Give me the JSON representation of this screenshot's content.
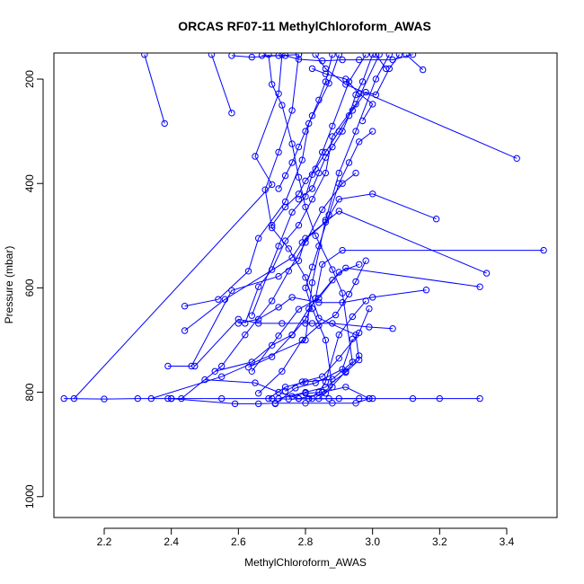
{
  "chart_data": {
    "type": "line",
    "title": "ORCAS RF07-11 MethylChloroform_AWAS",
    "xlabel": "MethylChloroform_AWAS",
    "ylabel": "Pressure (mbar)",
    "xlim": [
      2.05,
      3.55
    ],
    "ylim": [
      1040,
      150
    ],
    "y_reversed": true,
    "xticks": [
      2.2,
      2.4,
      2.6,
      2.8,
      3.0,
      3.2,
      3.4
    ],
    "xtick_labels": [
      "2.2",
      "2.4",
      "2.6",
      "2.8",
      "3.0",
      "3.2",
      "3.4"
    ],
    "yticks": [
      200,
      400,
      600,
      800,
      1000
    ],
    "ytick_labels": [
      "200",
      "400",
      "600",
      "800",
      "1000"
    ],
    "grid": false,
    "line_color": "#0000ff",
    "marker": "open-circle",
    "series": [
      {
        "points": [
          [
            2.08,
            812
          ],
          [
            2.2,
            813
          ],
          [
            2.3,
            812
          ],
          [
            2.4,
            812
          ],
          [
            2.55,
            812
          ],
          [
            2.7,
            812
          ],
          [
            2.75,
            813
          ],
          [
            2.9,
            812
          ],
          [
            3.0,
            812
          ],
          [
            3.12,
            812
          ],
          [
            3.2,
            812
          ],
          [
            3.32,
            812
          ]
        ]
      },
      {
        "points": [
          [
            2.11,
            812
          ],
          [
            2.7,
            402
          ],
          [
            2.65,
            348
          ],
          [
            2.72,
            228
          ],
          [
            2.73,
            153
          ]
        ]
      },
      {
        "points": [
          [
            2.34,
            812
          ],
          [
            2.55,
            770
          ],
          [
            2.8,
            700
          ],
          [
            2.82,
            590
          ],
          [
            2.86,
            470
          ],
          [
            2.9,
            380
          ],
          [
            2.95,
            300
          ],
          [
            3.01,
            200
          ],
          [
            3.05,
            153
          ]
        ]
      },
      {
        "points": [
          [
            2.39,
            812
          ],
          [
            2.43,
            812
          ],
          [
            2.55,
            750
          ],
          [
            2.62,
            690
          ],
          [
            2.7,
            625
          ],
          [
            2.75,
            568
          ],
          [
            2.8,
            513
          ],
          [
            2.85,
            450
          ],
          [
            2.91,
            400
          ],
          [
            2.95,
            380
          ]
        ]
      },
      {
        "points": [
          [
            2.39,
            750
          ],
          [
            2.46,
            750
          ],
          [
            2.58,
            605
          ],
          [
            2.72,
            578
          ],
          [
            2.78,
            548
          ],
          [
            2.8,
            505
          ],
          [
            2.9,
            453
          ],
          [
            3.34,
            572
          ]
        ]
      },
      {
        "points": [
          [
            2.4,
            812
          ],
          [
            2.59,
            822
          ],
          [
            2.66,
            822
          ],
          [
            2.71,
            821
          ],
          [
            2.8,
            821
          ],
          [
            2.88,
            821
          ],
          [
            2.95,
            821
          ],
          [
            2.99,
            812
          ]
        ]
      },
      {
        "points": [
          [
            2.44,
            635
          ],
          [
            2.54,
            622
          ],
          [
            2.63,
            568
          ],
          [
            2.66,
            505
          ],
          [
            2.74,
            435
          ],
          [
            2.79,
            355
          ],
          [
            2.81,
            285
          ],
          [
            2.87,
            208
          ],
          [
            2.9,
            153
          ]
        ]
      },
      {
        "points": [
          [
            2.44,
            682
          ],
          [
            2.56,
            622
          ],
          [
            2.76,
            542
          ],
          [
            2.79,
            513
          ],
          [
            2.86,
            474
          ],
          [
            2.9,
            430
          ],
          [
            3.0,
            420
          ],
          [
            3.19,
            468
          ]
        ]
      },
      {
        "points": [
          [
            2.47,
            750
          ],
          [
            2.6,
            660
          ],
          [
            2.66,
            668
          ],
          [
            2.73,
            668
          ],
          [
            2.8,
            668
          ],
          [
            2.82,
            668
          ],
          [
            2.88,
            668
          ],
          [
            2.99,
            675
          ],
          [
            3.06,
            678
          ]
        ]
      },
      {
        "points": [
          [
            2.5,
            776
          ],
          [
            2.65,
            782
          ],
          [
            2.72,
            800
          ],
          [
            2.78,
            812
          ],
          [
            2.82,
            812
          ],
          [
            2.87,
            812
          ],
          [
            2.96,
            812
          ]
        ]
      },
      {
        "points": [
          [
            2.53,
            760
          ],
          [
            2.64,
            742
          ],
          [
            2.7,
            710
          ],
          [
            2.76,
            690
          ],
          [
            2.8,
            660
          ],
          [
            2.83,
            620
          ],
          [
            2.85,
            555
          ],
          [
            2.91,
            528
          ],
          [
            3.51,
            528
          ]
        ]
      },
      {
        "points": [
          [
            2.38,
            285
          ],
          [
            2.32,
            153
          ]
        ]
      },
      {
        "points": [
          [
            2.58,
            265
          ],
          [
            2.52,
            153
          ]
        ]
      },
      {
        "points": [
          [
            2.6,
            668
          ],
          [
            2.66,
            660
          ],
          [
            2.72,
            637
          ],
          [
            2.76,
            618
          ],
          [
            2.84,
            628
          ],
          [
            2.91,
            628
          ],
          [
            3.0,
            618
          ],
          [
            3.16,
            604
          ]
        ]
      },
      {
        "points": [
          [
            2.62,
            668
          ],
          [
            2.66,
            598
          ],
          [
            2.7,
            565
          ],
          [
            2.74,
            510
          ],
          [
            2.78,
            480
          ],
          [
            2.82,
            430
          ],
          [
            2.86,
            380
          ],
          [
            2.88,
            310
          ],
          [
            2.95,
            248
          ],
          [
            3.02,
            153
          ]
        ]
      },
      {
        "points": [
          [
            2.64,
            653
          ],
          [
            2.72,
            520
          ],
          [
            2.76,
            455
          ],
          [
            2.8,
            425
          ],
          [
            2.82,
            383
          ],
          [
            2.85,
            340
          ],
          [
            2.88,
            290
          ],
          [
            2.93,
            205
          ],
          [
            2.98,
            153
          ]
        ]
      },
      {
        "points": [
          [
            2.63,
            752
          ],
          [
            2.7,
            732
          ],
          [
            2.76,
            690
          ],
          [
            2.81,
            640
          ],
          [
            2.88,
            585
          ],
          [
            2.92,
            562
          ],
          [
            3.32,
            598
          ]
        ]
      },
      {
        "points": [
          [
            2.64,
            760
          ],
          [
            2.72,
            692
          ],
          [
            2.78,
            641
          ],
          [
            2.84,
            620
          ],
          [
            2.9,
            570
          ],
          [
            2.96,
            555
          ]
        ]
      },
      {
        "points": [
          [
            2.66,
            802
          ],
          [
            2.73,
            760
          ],
          [
            2.79,
            700
          ],
          [
            2.84,
            672
          ],
          [
            2.89,
            652
          ],
          [
            2.93,
            612
          ],
          [
            2.95,
            588
          ],
          [
            2.98,
            548
          ]
        ]
      },
      {
        "points": [
          [
            2.69,
            812
          ],
          [
            2.74,
            790
          ],
          [
            2.8,
            780
          ],
          [
            2.88,
            775
          ],
          [
            2.94,
            742
          ],
          [
            2.91,
            610
          ],
          [
            2.88,
            565
          ],
          [
            2.83,
            500
          ],
          [
            2.8,
            445
          ],
          [
            2.78,
            388
          ],
          [
            2.76,
            324
          ],
          [
            2.73,
            250
          ],
          [
            2.7,
            210
          ],
          [
            2.69,
            153
          ]
        ]
      },
      {
        "points": [
          [
            2.71,
            822
          ],
          [
            2.77,
            792
          ],
          [
            2.83,
            782
          ],
          [
            2.91,
            756
          ],
          [
            2.94,
            698
          ]
        ]
      },
      {
        "points": [
          [
            2.72,
            812
          ],
          [
            2.8,
            800
          ],
          [
            2.86,
            790
          ],
          [
            2.92,
            762
          ],
          [
            2.96,
            738
          ],
          [
            2.95,
            690
          ],
          [
            2.84,
            658
          ],
          [
            2.8,
            580
          ],
          [
            2.75,
            525
          ],
          [
            2.7,
            485
          ],
          [
            2.68,
            412
          ],
          [
            2.72,
            340
          ],
          [
            2.76,
            260
          ],
          [
            2.78,
            153
          ]
        ]
      },
      {
        "points": [
          [
            2.74,
            798
          ],
          [
            2.79,
            780
          ],
          [
            2.85,
            770
          ],
          [
            2.9,
            735
          ],
          [
            2.96,
            686
          ],
          [
            2.99,
            640
          ]
        ]
      },
      {
        "points": [
          [
            2.76,
            808
          ],
          [
            2.8,
            802
          ],
          [
            2.85,
            800
          ],
          [
            2.92,
            790
          ],
          [
            2.99,
            812
          ]
        ]
      },
      {
        "points": [
          [
            2.78,
            812
          ],
          [
            2.86,
            802
          ],
          [
            2.92,
            760
          ],
          [
            2.96,
            730
          ]
        ]
      },
      {
        "points": [
          [
            2.81,
            812
          ],
          [
            2.84,
            800
          ],
          [
            2.86,
            780
          ],
          [
            2.9,
            690
          ],
          [
            2.94,
            655
          ],
          [
            2.98,
            625
          ]
        ]
      },
      {
        "points": [
          [
            2.84,
            812
          ],
          [
            2.88,
            790
          ],
          [
            2.86,
            700
          ],
          [
            2.82,
            640
          ],
          [
            2.8,
            600
          ],
          [
            2.82,
            560
          ],
          [
            2.84,
            520
          ],
          [
            2.87,
            460
          ],
          [
            2.9,
            400
          ],
          [
            2.93,
            360
          ],
          [
            2.96,
            320
          ],
          [
            3.0,
            300
          ]
        ]
      },
      {
        "points": [
          [
            2.72,
            410
          ],
          [
            2.74,
            385
          ],
          [
            2.76,
            360
          ],
          [
            2.78,
            330
          ],
          [
            2.8,
            300
          ],
          [
            2.82,
            270
          ],
          [
            2.84,
            240
          ],
          [
            2.86,
            205
          ],
          [
            2.88,
            153
          ]
        ]
      },
      {
        "points": [
          [
            2.78,
            430
          ],
          [
            2.82,
            410
          ],
          [
            2.84,
            380
          ],
          [
            2.86,
            350
          ],
          [
            2.88,
            330
          ],
          [
            2.91,
            300
          ],
          [
            2.93,
            270
          ],
          [
            2.95,
            230
          ],
          [
            2.97,
            205
          ],
          [
            3.0,
            153
          ]
        ]
      },
      {
        "points": [
          [
            2.7,
            480
          ],
          [
            2.74,
            445
          ],
          [
            2.78,
            420
          ],
          [
            2.8,
            395
          ],
          [
            2.83,
            372
          ],
          [
            2.86,
            340
          ],
          [
            2.9,
            300
          ],
          [
            2.94,
            260
          ],
          [
            2.98,
            225
          ],
          [
            3.01,
            230
          ],
          [
            3.05,
            180
          ],
          [
            3.08,
            153
          ]
        ]
      },
      {
        "points": [
          [
            3.43,
            352
          ],
          [
            2.92,
            210
          ],
          [
            2.86,
            180
          ],
          [
            2.83,
            153
          ]
        ]
      },
      {
        "points": [
          [
            2.67,
            155
          ],
          [
            2.74,
            155
          ],
          [
            2.78,
            162
          ],
          [
            2.85,
            165
          ],
          [
            2.91,
            163
          ],
          [
            2.96,
            163
          ],
          [
            3.06,
            163
          ],
          [
            3.12,
            153
          ]
        ]
      },
      {
        "points": [
          [
            2.58,
            155
          ],
          [
            2.64,
            158
          ],
          [
            2.72,
            155
          ],
          [
            2.78,
            153
          ]
        ]
      },
      {
        "points": [
          [
            3.15,
            182
          ],
          [
            3.1,
            153
          ]
        ]
      },
      {
        "points": [
          [
            3.04,
            180
          ],
          [
            3.01,
            153
          ]
        ]
      },
      {
        "points": [
          [
            2.82,
            180
          ],
          [
            2.86,
            190
          ],
          [
            2.92,
            200
          ],
          [
            2.96,
            228
          ],
          [
            3.0,
            248
          ],
          [
            2.97,
            280
          ]
        ]
      }
    ]
  }
}
